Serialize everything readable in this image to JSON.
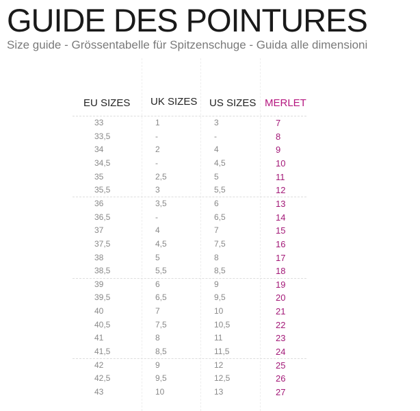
{
  "title": "GUIDE DES POINTURES",
  "subtitle": "Size guide - Grössentabelle für Spitzenschuge - Guida alle dimensioni",
  "table": {
    "headers": [
      "EU SIZES",
      "UK SIZES",
      "US SIZES",
      "MERLET"
    ],
    "accent_color": "#a31877",
    "rows": [
      [
        "33",
        "1",
        "3",
        "7"
      ],
      [
        "33,5",
        "-",
        "-",
        "8"
      ],
      [
        "34",
        "2",
        "4",
        "9"
      ],
      [
        "34,5",
        "-",
        "4,5",
        "10"
      ],
      [
        "35",
        "2,5",
        "5",
        "11"
      ],
      [
        "35,5",
        "3",
        "5,5",
        "12"
      ],
      [
        "36",
        "3,5",
        "6",
        "13"
      ],
      [
        "36,5",
        "-",
        "6,5",
        "14"
      ],
      [
        "37",
        "4",
        "7",
        "15"
      ],
      [
        "37,5",
        "4,5",
        "7,5",
        "16"
      ],
      [
        "38",
        "5",
        "8",
        "17"
      ],
      [
        "38,5",
        "5,5",
        "8,5",
        "18"
      ],
      [
        "39",
        "6",
        "9",
        "19"
      ],
      [
        "39,5",
        "6,5",
        "9,5",
        "20"
      ],
      [
        "40",
        "7",
        "10",
        "21"
      ],
      [
        "40,5",
        "7,5",
        "10,5",
        "22"
      ],
      [
        "41",
        "8",
        "11",
        "23"
      ],
      [
        "41,5",
        "8,5",
        "11,5",
        "24"
      ],
      [
        "42",
        "9",
        "12",
        "25"
      ],
      [
        "42,5",
        "9,5",
        "12,5",
        "26"
      ],
      [
        "43",
        "10",
        "13",
        "27"
      ]
    ]
  }
}
